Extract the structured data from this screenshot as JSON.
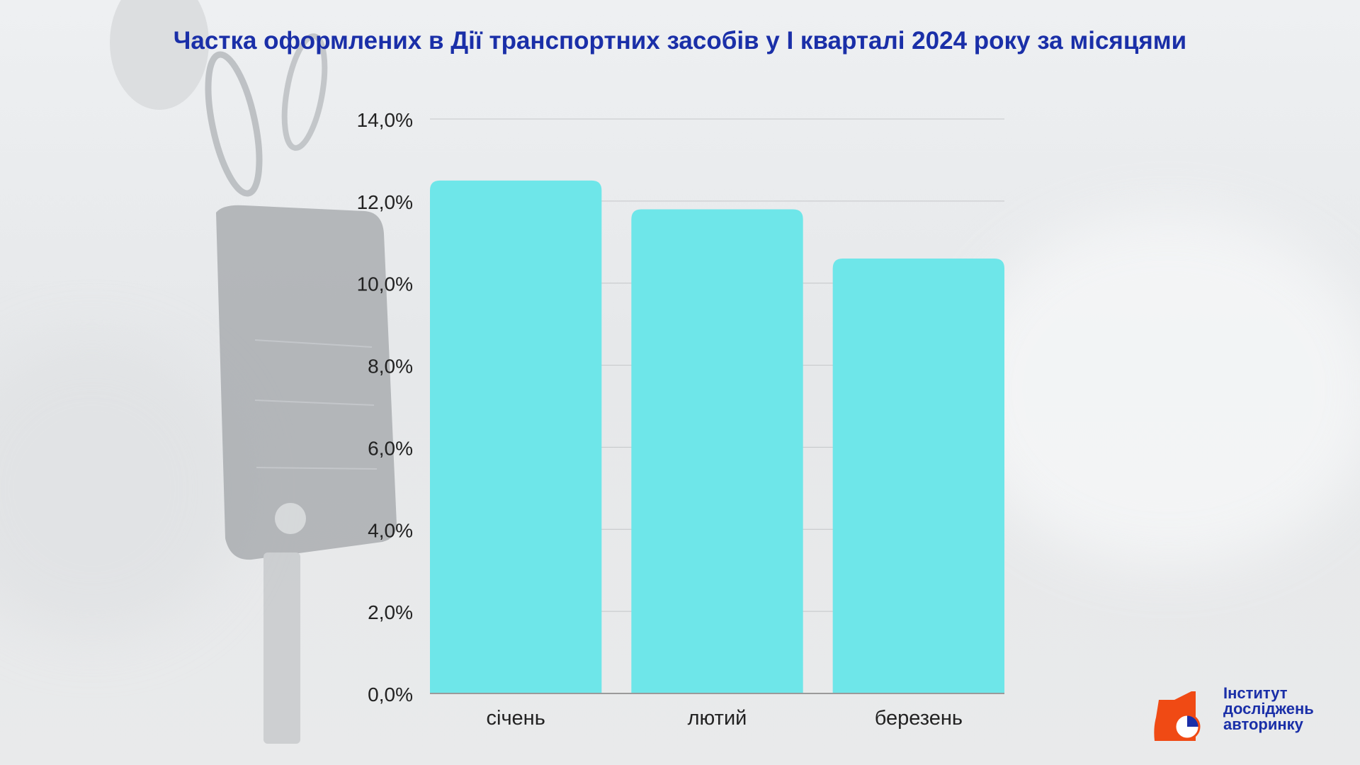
{
  "title": "Частка оформлених в Дії транспортних засобів у І кварталі 2024 року за місяцями",
  "chart_data": {
    "type": "bar",
    "title": "Частка оформлених в Дії транспортних засобів у І кварталі 2024 року за місяцями",
    "xlabel": "",
    "ylabel": "",
    "categories": [
      "січень",
      "лютий",
      "березень"
    ],
    "values": [
      12.5,
      11.8,
      10.6
    ],
    "ylim": [
      0,
      14
    ],
    "yticks": [
      0,
      2,
      4,
      6,
      8,
      10,
      12,
      14
    ],
    "ytick_labels": [
      "0,0%",
      "2,0%",
      "4,0%",
      "6,0%",
      "8,0%",
      "10,0%",
      "12,0%",
      "14,0%"
    ],
    "grid": true,
    "bar_color": "#6ee6e9"
  },
  "logo": {
    "line1": "Інститут",
    "line2": "досліджень",
    "line3": "авторинку",
    "accent_color": "#f04a14",
    "text_color": "#1a2fa8"
  }
}
